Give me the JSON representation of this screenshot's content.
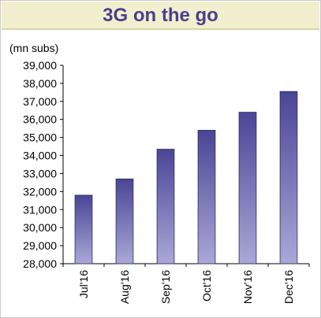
{
  "title": "3G on the go",
  "chart_data": {
    "type": "bar",
    "unit_label": "(mn subs)",
    "categories": [
      "Jul'16",
      "Aug'16",
      "Sep'16",
      "Oct'16",
      "Nov'16",
      "Dec'16"
    ],
    "values": [
      31800,
      32700,
      34350,
      35400,
      36400,
      37550
    ],
    "ylim": [
      28000,
      39000
    ],
    "yticks": [
      "28,000",
      "29,000",
      "30,000",
      "31,000",
      "32,000",
      "33,000",
      "34,000",
      "35,000",
      "36,000",
      "37,000",
      "38,000",
      "39,000"
    ],
    "bar_gradient": [
      "#4b4596",
      "#a9a8d6"
    ],
    "grid": false,
    "legend": "none"
  }
}
